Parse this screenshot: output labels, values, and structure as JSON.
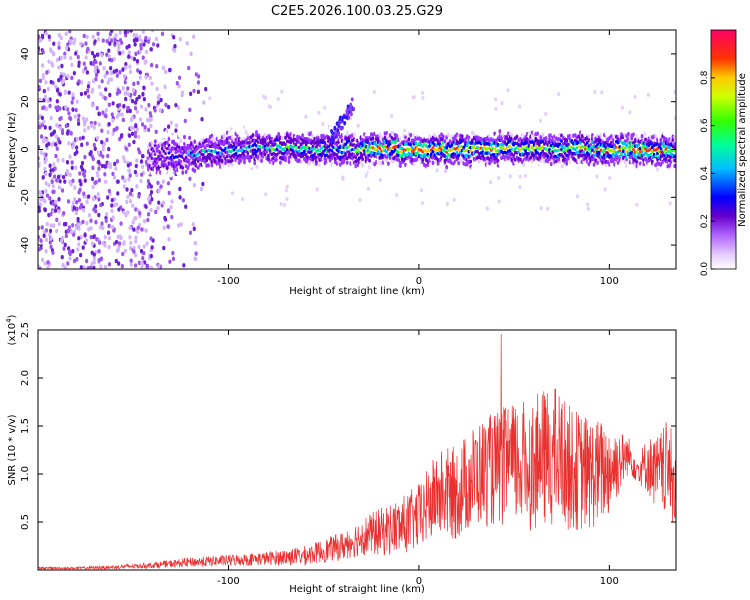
{
  "figure_title": "C2E5.2026.100.03.25.G29",
  "chart_data": [
    {
      "type": "heatmap",
      "title": "C2E5.2026.100.03.25.G29",
      "xlabel": "Height of straight line (km)",
      "ylabel": "Frequency (Hz)",
      "xlim": [
        -200,
        135
      ],
      "ylim": [
        -50,
        50
      ],
      "xticks": [
        -100,
        0,
        100
      ],
      "xtick_labels": [
        "-100",
        "0",
        "100"
      ],
      "yticks": [
        -40,
        -20,
        0,
        20,
        40
      ],
      "ytick_labels": [
        "-40",
        "-20",
        "0",
        "20",
        "40"
      ],
      "colorbar": {
        "label": "Normalized spectral amplitude",
        "range": [
          0.0,
          1.0
        ],
        "ticks": [
          0.0,
          0.2,
          0.4,
          0.6,
          0.8
        ],
        "tick_labels": [
          "0.0",
          "0.2",
          "0.4",
          "0.6",
          "0.8"
        ],
        "colors": [
          "#ffffff",
          "#e6ccff",
          "#9933ff",
          "#6600cc",
          "#0000ff",
          "#00bfff",
          "#00ff66",
          "#66ff00",
          "#ffcc00",
          "#ff3300",
          "#ff0066"
        ]
      },
      "ridge": {
        "description": "Narrow band of high amplitude near 0 Hz from about -140 km to 135 km; scattered low-amplitude noise for x < -120 km",
        "x": [
          -140,
          -120,
          -100,
          -80,
          -60,
          -45,
          -35,
          -20,
          0,
          20,
          40,
          60,
          80,
          100,
          120,
          135
        ],
        "center_hz": [
          -3,
          -2,
          0,
          1,
          0,
          0,
          0,
          0,
          0,
          0,
          0,
          1,
          0,
          0,
          0,
          0
        ],
        "peak_amplitude": [
          0.3,
          0.45,
          0.55,
          0.6,
          0.6,
          0.55,
          0.6,
          0.9,
          0.95,
          0.8,
          0.75,
          0.7,
          0.7,
          0.8,
          0.95,
          0.7
        ]
      }
    },
    {
      "type": "line",
      "title": "",
      "xlabel": "Height of straight line (km)",
      "ylabel": "SNR (10 * v/v)",
      "scale_note": "(x10^4)",
      "scale_base": "(x10",
      "scale_exp": "4",
      "scale_close": ")",
      "xlim": [
        -200,
        135
      ],
      "ylim": [
        0,
        2.5
      ],
      "xticks": [
        -100,
        0,
        100
      ],
      "xtick_labels": [
        "-100",
        "0",
        "100"
      ],
      "yticks": [
        0.5,
        1.0,
        1.5,
        2.0,
        2.5
      ],
      "ytick_labels": [
        "0.5",
        "1.0",
        "1.5",
        "2.0",
        "2.5"
      ],
      "color": "#e8312f",
      "series": [
        {
          "name": "SNR",
          "x": [
            -200,
            -180,
            -160,
            -140,
            -120,
            -100,
            -80,
            -60,
            -50,
            -40,
            -30,
            -20,
            -10,
            0,
            10,
            20,
            30,
            40,
            50,
            60,
            70,
            75,
            80,
            90,
            100,
            110,
            115,
            120,
            125,
            130,
            135
          ],
          "y": [
            0.02,
            0.02,
            0.03,
            0.05,
            0.08,
            0.1,
            0.12,
            0.15,
            0.2,
            0.25,
            0.35,
            0.4,
            0.45,
            0.55,
            0.8,
            0.8,
            1.0,
            1.05,
            1.1,
            1.1,
            1.2,
            1.15,
            1.05,
            1.0,
            1.05,
            1.2,
            1.05,
            1.1,
            1.0,
            1.05,
            0.9
          ],
          "spread": [
            0.01,
            0.01,
            0.02,
            0.03,
            0.05,
            0.06,
            0.07,
            0.1,
            0.12,
            0.15,
            0.2,
            0.25,
            0.3,
            0.35,
            0.45,
            0.5,
            0.55,
            0.6,
            0.65,
            0.7,
            0.75,
            0.7,
            0.65,
            0.6,
            0.5,
            0.2,
            0.15,
            0.3,
            0.4,
            0.5,
            0.5
          ]
        }
      ]
    }
  ]
}
